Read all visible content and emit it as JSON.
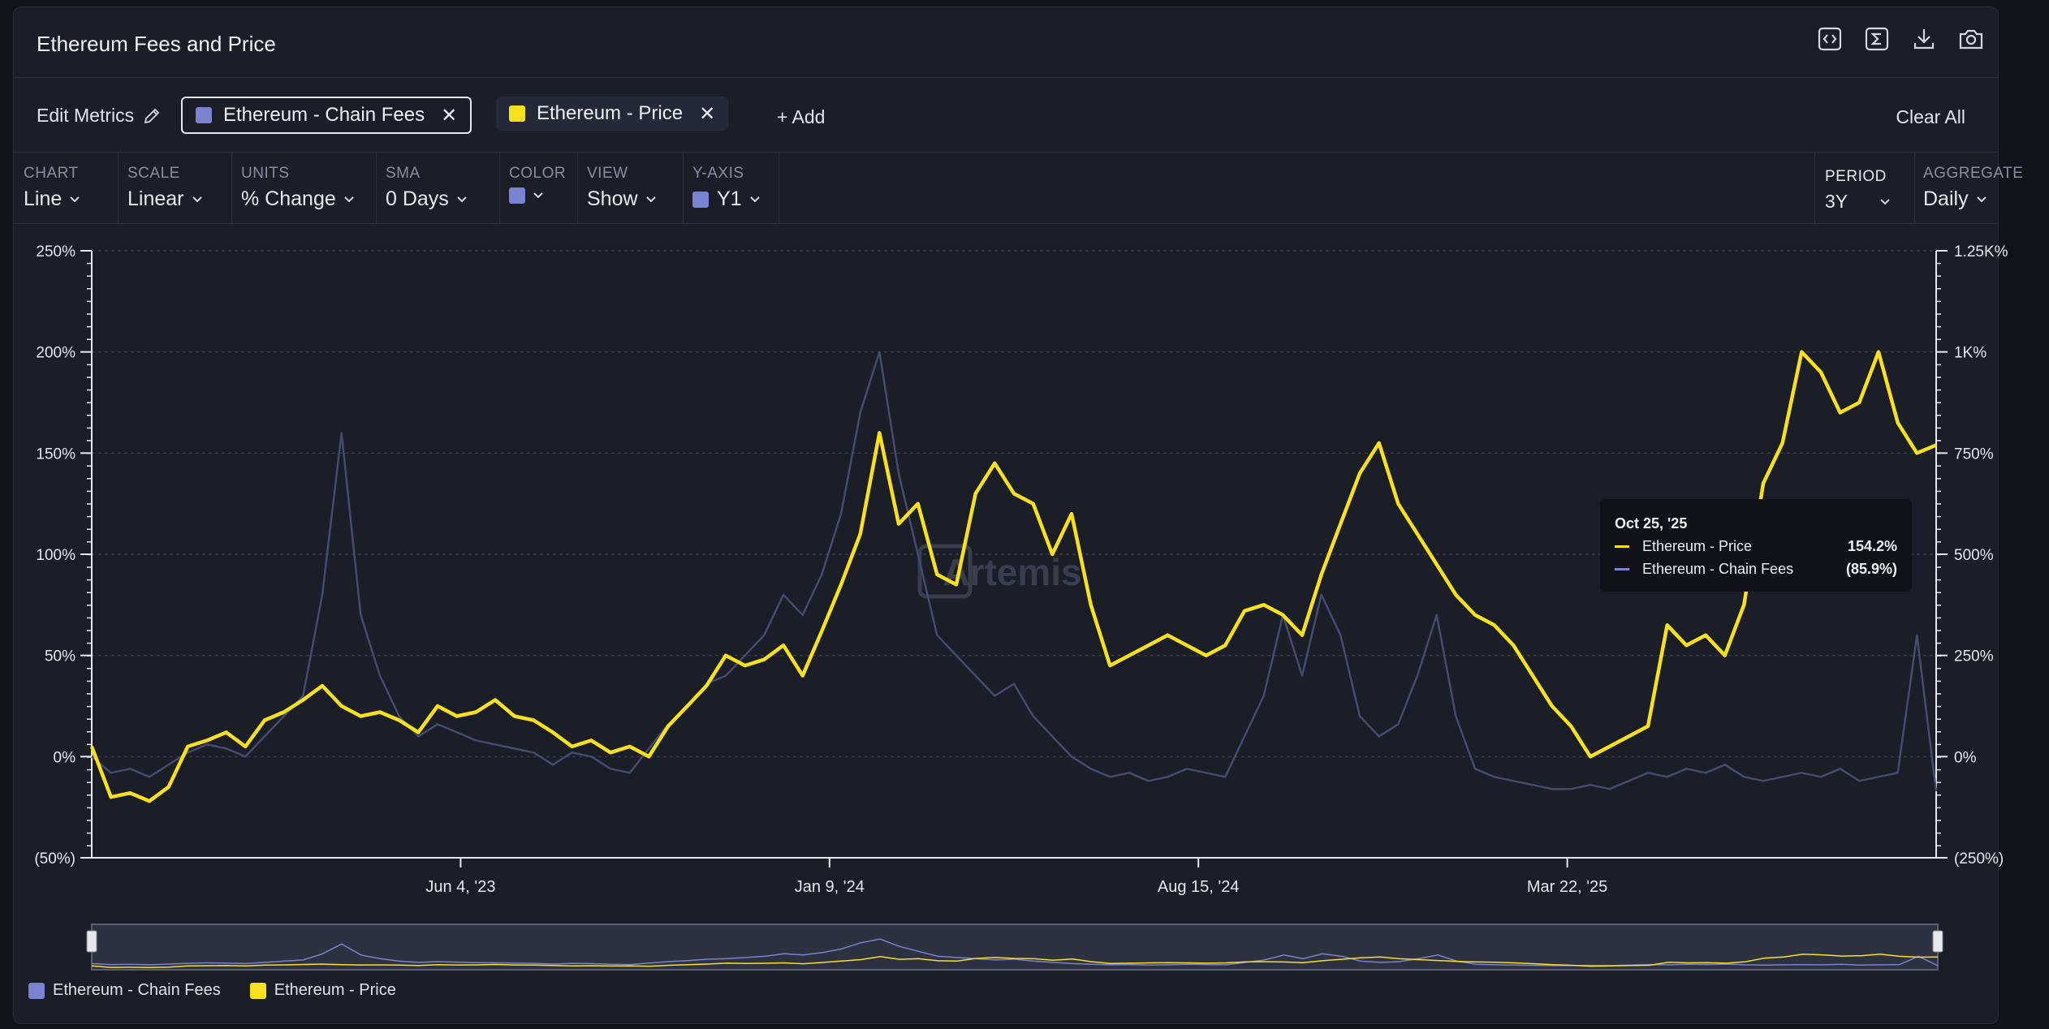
{
  "header": {
    "title": "Ethereum Fees and Price",
    "tools": [
      {
        "icon": "embed-code-icon"
      },
      {
        "icon": "sigma-formula-icon"
      },
      {
        "icon": "download-icon"
      },
      {
        "icon": "camera-icon"
      }
    ]
  },
  "metrics": {
    "edit_label": "Edit Metrics",
    "items": [
      {
        "label": "Ethereum - Chain Fees",
        "color": "#7b82cf",
        "selected": true
      },
      {
        "label": "Ethereum - Price",
        "color": "#f7e11f",
        "selected": false
      }
    ],
    "add_label": "+ Add",
    "clear_label": "Clear All"
  },
  "controls": [
    {
      "label": "CHART",
      "value": "Line"
    },
    {
      "label": "SCALE",
      "value": "Linear"
    },
    {
      "label": "UNITS",
      "value": "% Change"
    },
    {
      "label": "SMA",
      "value": "0 Days"
    },
    {
      "label": "COLOR",
      "value": "",
      "swatch": "#7b82cf"
    },
    {
      "label": "VIEW",
      "value": "Show"
    },
    {
      "label": "Y-AXIS",
      "value": "Y1",
      "swatch": "#7b82cf"
    }
  ],
  "controls_right": [
    {
      "label": "PERIOD",
      "value": "3Y"
    },
    {
      "label": "AGGREGATE",
      "value": "Daily"
    }
  ],
  "watermark": "Artemis",
  "tooltip": {
    "date": "Oct 25, '25",
    "rows": [
      {
        "name": "Ethereum - Price",
        "value": "154.2%",
        "color": "#f7e11f"
      },
      {
        "name": "Ethereum - Chain Fees",
        "value": "(85.9%)",
        "color": "#7b82cf"
      }
    ]
  },
  "legend": [
    {
      "label": "Ethereum - Chain Fees",
      "color": "#7b82cf"
    },
    {
      "label": "Ethereum - Price",
      "color": "#f7e11f"
    }
  ],
  "chart_data": {
    "type": "line",
    "grid": true,
    "x_ticks": [
      "Jun 4, '23",
      "Jan 9, '24",
      "Aug 15, '24",
      "Mar 22, '25"
    ],
    "y1": {
      "ticks": [
        "250%",
        "200%",
        "150%",
        "100%",
        "50%",
        "0%",
        "(50%)"
      ],
      "range": [
        -50,
        250
      ]
    },
    "y2": {
      "ticks": [
        "1.25K%",
        "1K%",
        "750%",
        "500%",
        "250%",
        "0%",
        "(250%)"
      ],
      "range": [
        -250,
        1250
      ]
    },
    "series": [
      {
        "name": "Ethereum - Price",
        "axis": "y1",
        "color": "#f7e11f",
        "values": [
          5,
          -20,
          -18,
          -22,
          -15,
          5,
          8,
          12,
          5,
          18,
          22,
          28,
          35,
          25,
          20,
          22,
          18,
          12,
          25,
          20,
          22,
          28,
          20,
          18,
          12,
          5,
          8,
          2,
          5,
          0,
          15,
          25,
          35,
          50,
          45,
          48,
          55,
          40,
          62,
          85,
          110,
          160,
          115,
          125,
          90,
          85,
          130,
          145,
          130,
          125,
          100,
          120,
          75,
          45,
          50,
          55,
          60,
          55,
          50,
          55,
          72,
          75,
          70,
          60,
          90,
          115,
          140,
          155,
          125,
          110,
          95,
          80,
          70,
          65,
          55,
          40,
          25,
          15,
          0,
          5,
          10,
          15,
          65,
          55,
          60,
          50,
          75,
          135,
          155,
          200,
          190,
          170,
          175,
          200,
          165,
          150,
          154
        ]
      },
      {
        "name": "Ethereum - Chain Fees",
        "axis": "y2",
        "color": "#7b82cf",
        "values": [
          0,
          -40,
          -30,
          -50,
          -20,
          10,
          30,
          20,
          0,
          50,
          100,
          150,
          400,
          800,
          350,
          200,
          100,
          50,
          80,
          60,
          40,
          30,
          20,
          10,
          -20,
          10,
          0,
          -30,
          -40,
          20,
          80,
          120,
          180,
          200,
          250,
          300,
          400,
          350,
          450,
          600,
          850,
          1000,
          700,
          500,
          300,
          250,
          200,
          150,
          180,
          100,
          50,
          0,
          -30,
          -50,
          -40,
          -60,
          -50,
          -30,
          -40,
          -50,
          50,
          150,
          350,
          200,
          400,
          300,
          100,
          50,
          80,
          200,
          350,
          100,
          -30,
          -50,
          -60,
          -70,
          -80,
          -80,
          -70,
          -80,
          -60,
          -40,
          -50,
          -30,
          -40,
          -20,
          -50,
          -60,
          -50,
          -40,
          -50,
          -30,
          -60,
          -50,
          -40,
          300,
          -86
        ]
      }
    ]
  }
}
